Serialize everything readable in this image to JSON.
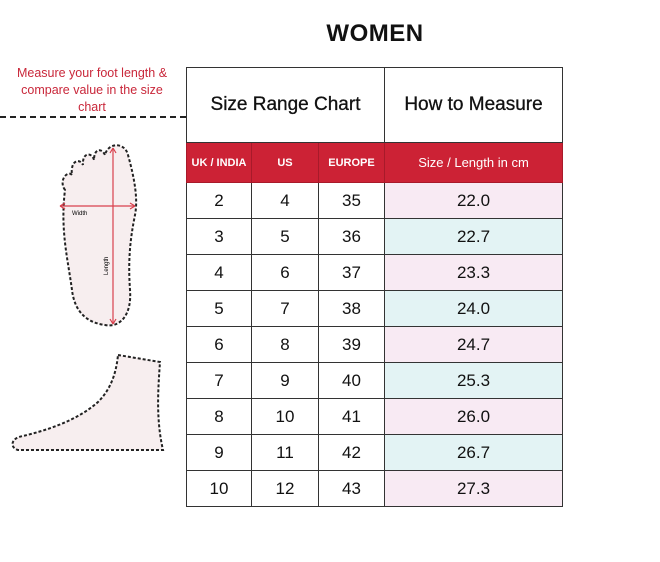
{
  "title": "WOMEN",
  "instruction": "Measure your foot length & compare value in the size chart",
  "diagram": {
    "width_label": "Width",
    "length_label": "Length"
  },
  "table": {
    "group_headers": [
      "Size Range Chart",
      "How to Measure"
    ],
    "columns": [
      "UK / INDIA",
      "US",
      "EUROPE",
      "Size / Length in cm"
    ],
    "rows": [
      [
        "2",
        "4",
        "35",
        "22.0"
      ],
      [
        "3",
        "5",
        "36",
        "22.7"
      ],
      [
        "4",
        "6",
        "37",
        "23.3"
      ],
      [
        "5",
        "7",
        "38",
        "24.0"
      ],
      [
        "6",
        "8",
        "39",
        "24.7"
      ],
      [
        "7",
        "9",
        "40",
        "25.3"
      ],
      [
        "8",
        "10",
        "41",
        "26.0"
      ],
      [
        "9",
        "11",
        "42",
        "26.7"
      ],
      [
        "10",
        "12",
        "43",
        "27.3"
      ]
    ]
  },
  "colors": {
    "accent": "#cc2235",
    "pink_row": "#f8eaf3",
    "cyan_row": "#e3f3f4"
  }
}
